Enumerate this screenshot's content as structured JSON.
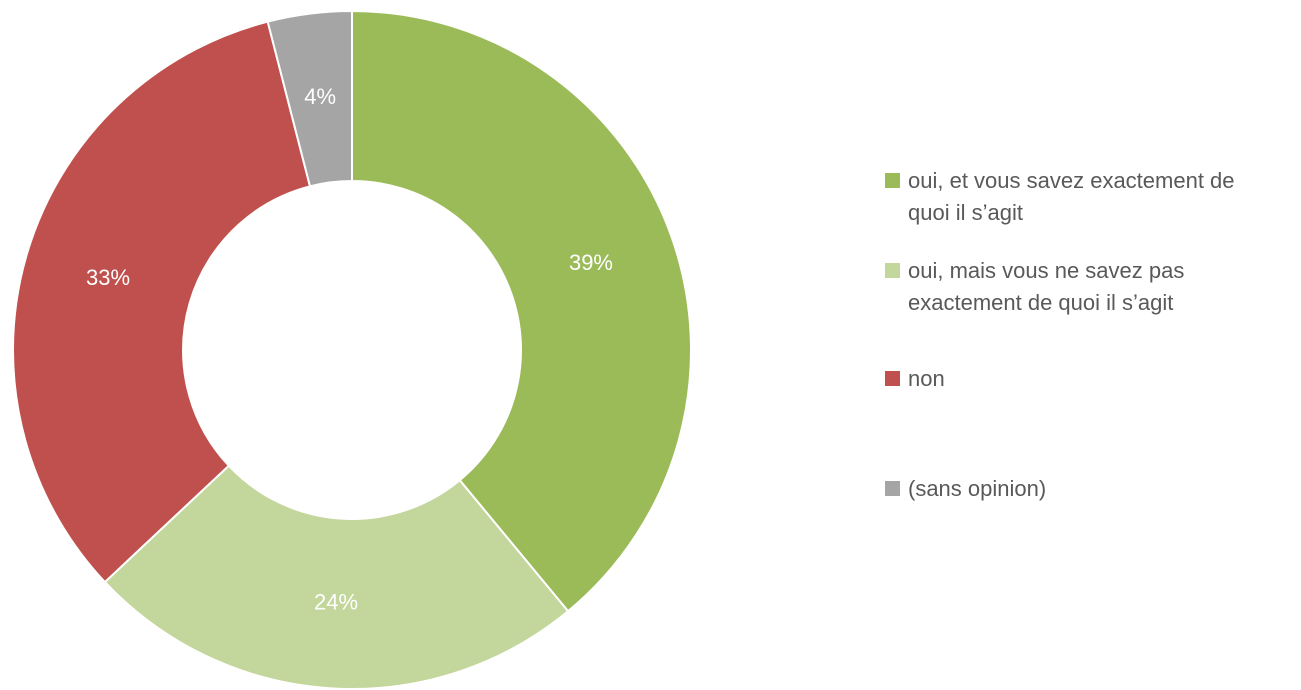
{
  "chart_data": {
    "type": "donut",
    "categories": [
      "oui, et vous savez exactement de quoi il s’agit",
      "oui, mais vous ne savez pas exactement de quoi il s’agit",
      "non",
      "(sans opinion)"
    ],
    "values": [
      39,
      24,
      33,
      4
    ],
    "value_labels": [
      "39%",
      "24%",
      "33%",
      "4%"
    ],
    "colors": [
      "#9bbb59",
      "#c3d69b",
      "#c0504d",
      "#a5a5a5"
    ],
    "legend": "right"
  }
}
